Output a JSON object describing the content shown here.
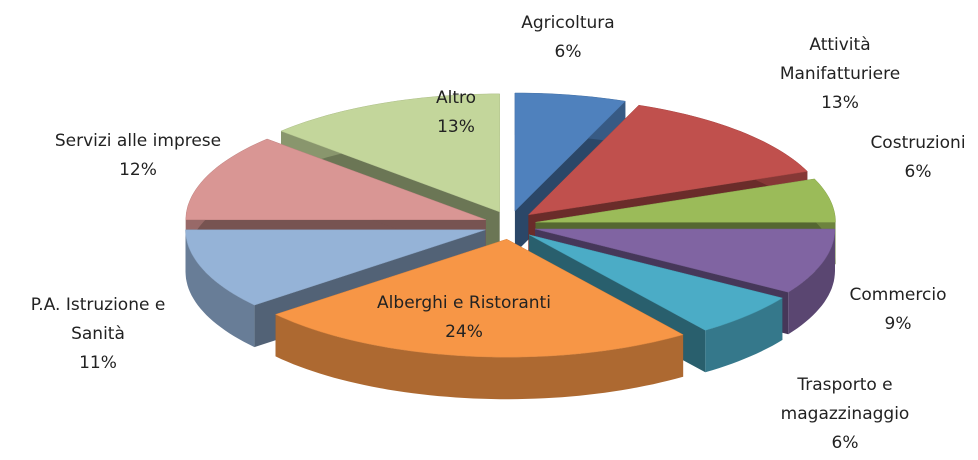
{
  "chart_data": {
    "type": "pie",
    "categories": [
      "Agricoltura",
      "Attività\nManifatturiere",
      "Costruzioni",
      "Commercio",
      "Trasporto e\nmagazzinaggio",
      "Alberghi e Ristoranti",
      "P.A. Istruzione e\nSanità",
      "Servizi alle imprese",
      "Altro"
    ],
    "values": [
      6,
      13,
      6,
      9,
      6,
      24,
      11,
      12,
      13
    ],
    "value_labels": [
      "6%",
      "13%",
      "6%",
      "9%",
      "6%",
      "24%",
      "11%",
      "12%",
      "13%"
    ],
    "colors": [
      "#4f81bd",
      "#c0504d",
      "#9bbb59",
      "#8064a2",
      "#4bacc6",
      "#f79646",
      "#95b3d7",
      "#d99694",
      "#c3d69b"
    ]
  }
}
